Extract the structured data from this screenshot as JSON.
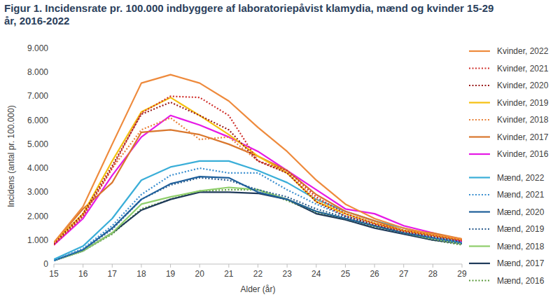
{
  "chart_data": {
    "type": "line",
    "title": "Figur 1. Incidensrate pr. 100.000 indbyggere af laboratoriepåvist klamydia, mænd og kvinder 15-29 år, 2016-2022",
    "x_label": "Alder (år)",
    "y_label": "Incidens (antal pr. 100.000)",
    "x": [
      15,
      16,
      17,
      18,
      19,
      20,
      21,
      22,
      23,
      24,
      25,
      26,
      27,
      28,
      29
    ],
    "xlim": [
      15,
      29
    ],
    "xticks": [
      15,
      16,
      17,
      18,
      19,
      20,
      21,
      22,
      23,
      24,
      25,
      26,
      27,
      28,
      29
    ],
    "ylim": [
      0,
      9000
    ],
    "yticks": [
      0,
      {
        "value": 1000,
        "label": "1.000"
      },
      {
        "value": 2000,
        "label": "2.000"
      },
      {
        "value": 3000,
        "label": "3.000"
      },
      {
        "value": 4000,
        "label": "4.000"
      },
      {
        "value": 5000,
        "label": "5.000"
      },
      {
        "value": 6000,
        "label": "6.000"
      },
      {
        "value": 7000,
        "label": "7.000"
      },
      {
        "value": 8000,
        "label": "8.000"
      },
      {
        "value": 9000,
        "label": "9.000"
      }
    ],
    "grid": false,
    "legend": "right",
    "series": [
      {
        "name": "Kvinder, 2022",
        "color": "#ee8a3c",
        "line_style": "solid",
        "values": [
          900,
          2400,
          5000,
          7550,
          7900,
          7550,
          6800,
          5700,
          4700,
          3500,
          2500,
          1900,
          1500,
          1250,
          1050
        ]
      },
      {
        "name": "Kvinder, 2021",
        "color": "#d0312d",
        "line_style": "dotted",
        "values": [
          800,
          2000,
          4000,
          6300,
          7000,
          6950,
          6200,
          4300,
          3900,
          2800,
          2100,
          1700,
          1400,
          1200,
          1000
        ]
      },
      {
        "name": "Kvinder, 2020",
        "color": "#9a1c1c",
        "line_style": "dotted",
        "values": [
          850,
          2100,
          4100,
          6250,
          6750,
          6200,
          5600,
          4300,
          3800,
          2600,
          2000,
          1650,
          1350,
          1150,
          950
        ]
      },
      {
        "name": "Kvinder, 2019",
        "color": "#f5c010",
        "line_style": "solid",
        "values": [
          900,
          2100,
          4300,
          6350,
          6950,
          6200,
          5400,
          4500,
          3800,
          2600,
          2100,
          1700,
          1400,
          1200,
          1000
        ]
      },
      {
        "name": "Kvinder, 2018",
        "color": "#e8823a",
        "line_style": "dotted",
        "values": [
          850,
          2000,
          4000,
          5600,
          6100,
          5200,
          5300,
          4300,
          3800,
          2700,
          2100,
          1700,
          1400,
          1200,
          1000
        ]
      },
      {
        "name": "Kvinder, 2017",
        "color": "#d9772d",
        "line_style": "solid",
        "values": [
          900,
          2300,
          3400,
          5500,
          5600,
          5400,
          5000,
          4500,
          3900,
          2900,
          2200,
          1800,
          1400,
          1300,
          1050
        ]
      },
      {
        "name": "Kvinder, 2016",
        "color": "#e619e6",
        "line_style": "solid",
        "values": [
          800,
          1900,
          3700,
          5300,
          6200,
          5800,
          5300,
          4700,
          3900,
          3100,
          2300,
          2100,
          1600,
          1300,
          950
        ]
      },
      {
        "name": "Mænd, 2022",
        "color": "#3aaed8",
        "line_style": "solid",
        "values": [
          200,
          750,
          1900,
          3500,
          4050,
          4300,
          4300,
          3900,
          3400,
          2700,
          2200,
          1800,
          1500,
          1200,
          950
        ]
      },
      {
        "name": "Mænd, 2021",
        "color": "#3a8fd0",
        "line_style": "dotted",
        "values": [
          150,
          650,
          1600,
          2900,
          3700,
          4000,
          3800,
          3800,
          3100,
          2500,
          2000,
          1700,
          1400,
          1100,
          900
        ]
      },
      {
        "name": "Mænd, 2020",
        "color": "#1f5f9a",
        "line_style": "solid",
        "values": [
          150,
          600,
          1500,
          2700,
          3350,
          3650,
          3600,
          3000,
          2700,
          2200,
          1900,
          1600,
          1300,
          1100,
          900
        ]
      },
      {
        "name": "Mænd, 2019",
        "color": "#2e5f8f",
        "line_style": "dotted",
        "values": [
          150,
          600,
          1450,
          2700,
          3300,
          3600,
          3500,
          3100,
          2800,
          2300,
          1950,
          1600,
          1300,
          1050,
          850
        ]
      },
      {
        "name": "Mænd, 2018",
        "color": "#8fce6b",
        "line_style": "solid",
        "values": [
          150,
          550,
          1300,
          2500,
          2800,
          3050,
          3200,
          3100,
          2700,
          2200,
          1900,
          1600,
          1300,
          1050,
          850
        ]
      },
      {
        "name": "Mænd, 2017",
        "color": "#1f3a5a",
        "line_style": "solid",
        "values": [
          150,
          550,
          1300,
          2250,
          2700,
          3000,
          3000,
          2950,
          2700,
          2100,
          1850,
          1500,
          1250,
          1000,
          850
        ]
      },
      {
        "name": "Mænd, 2016",
        "color": "#5a9a3a",
        "line_style": "dotted",
        "values": [
          150,
          550,
          1250,
          2300,
          2700,
          3050,
          3100,
          3100,
          2650,
          2150,
          1850,
          1550,
          1300,
          1000,
          800
        ]
      }
    ]
  }
}
